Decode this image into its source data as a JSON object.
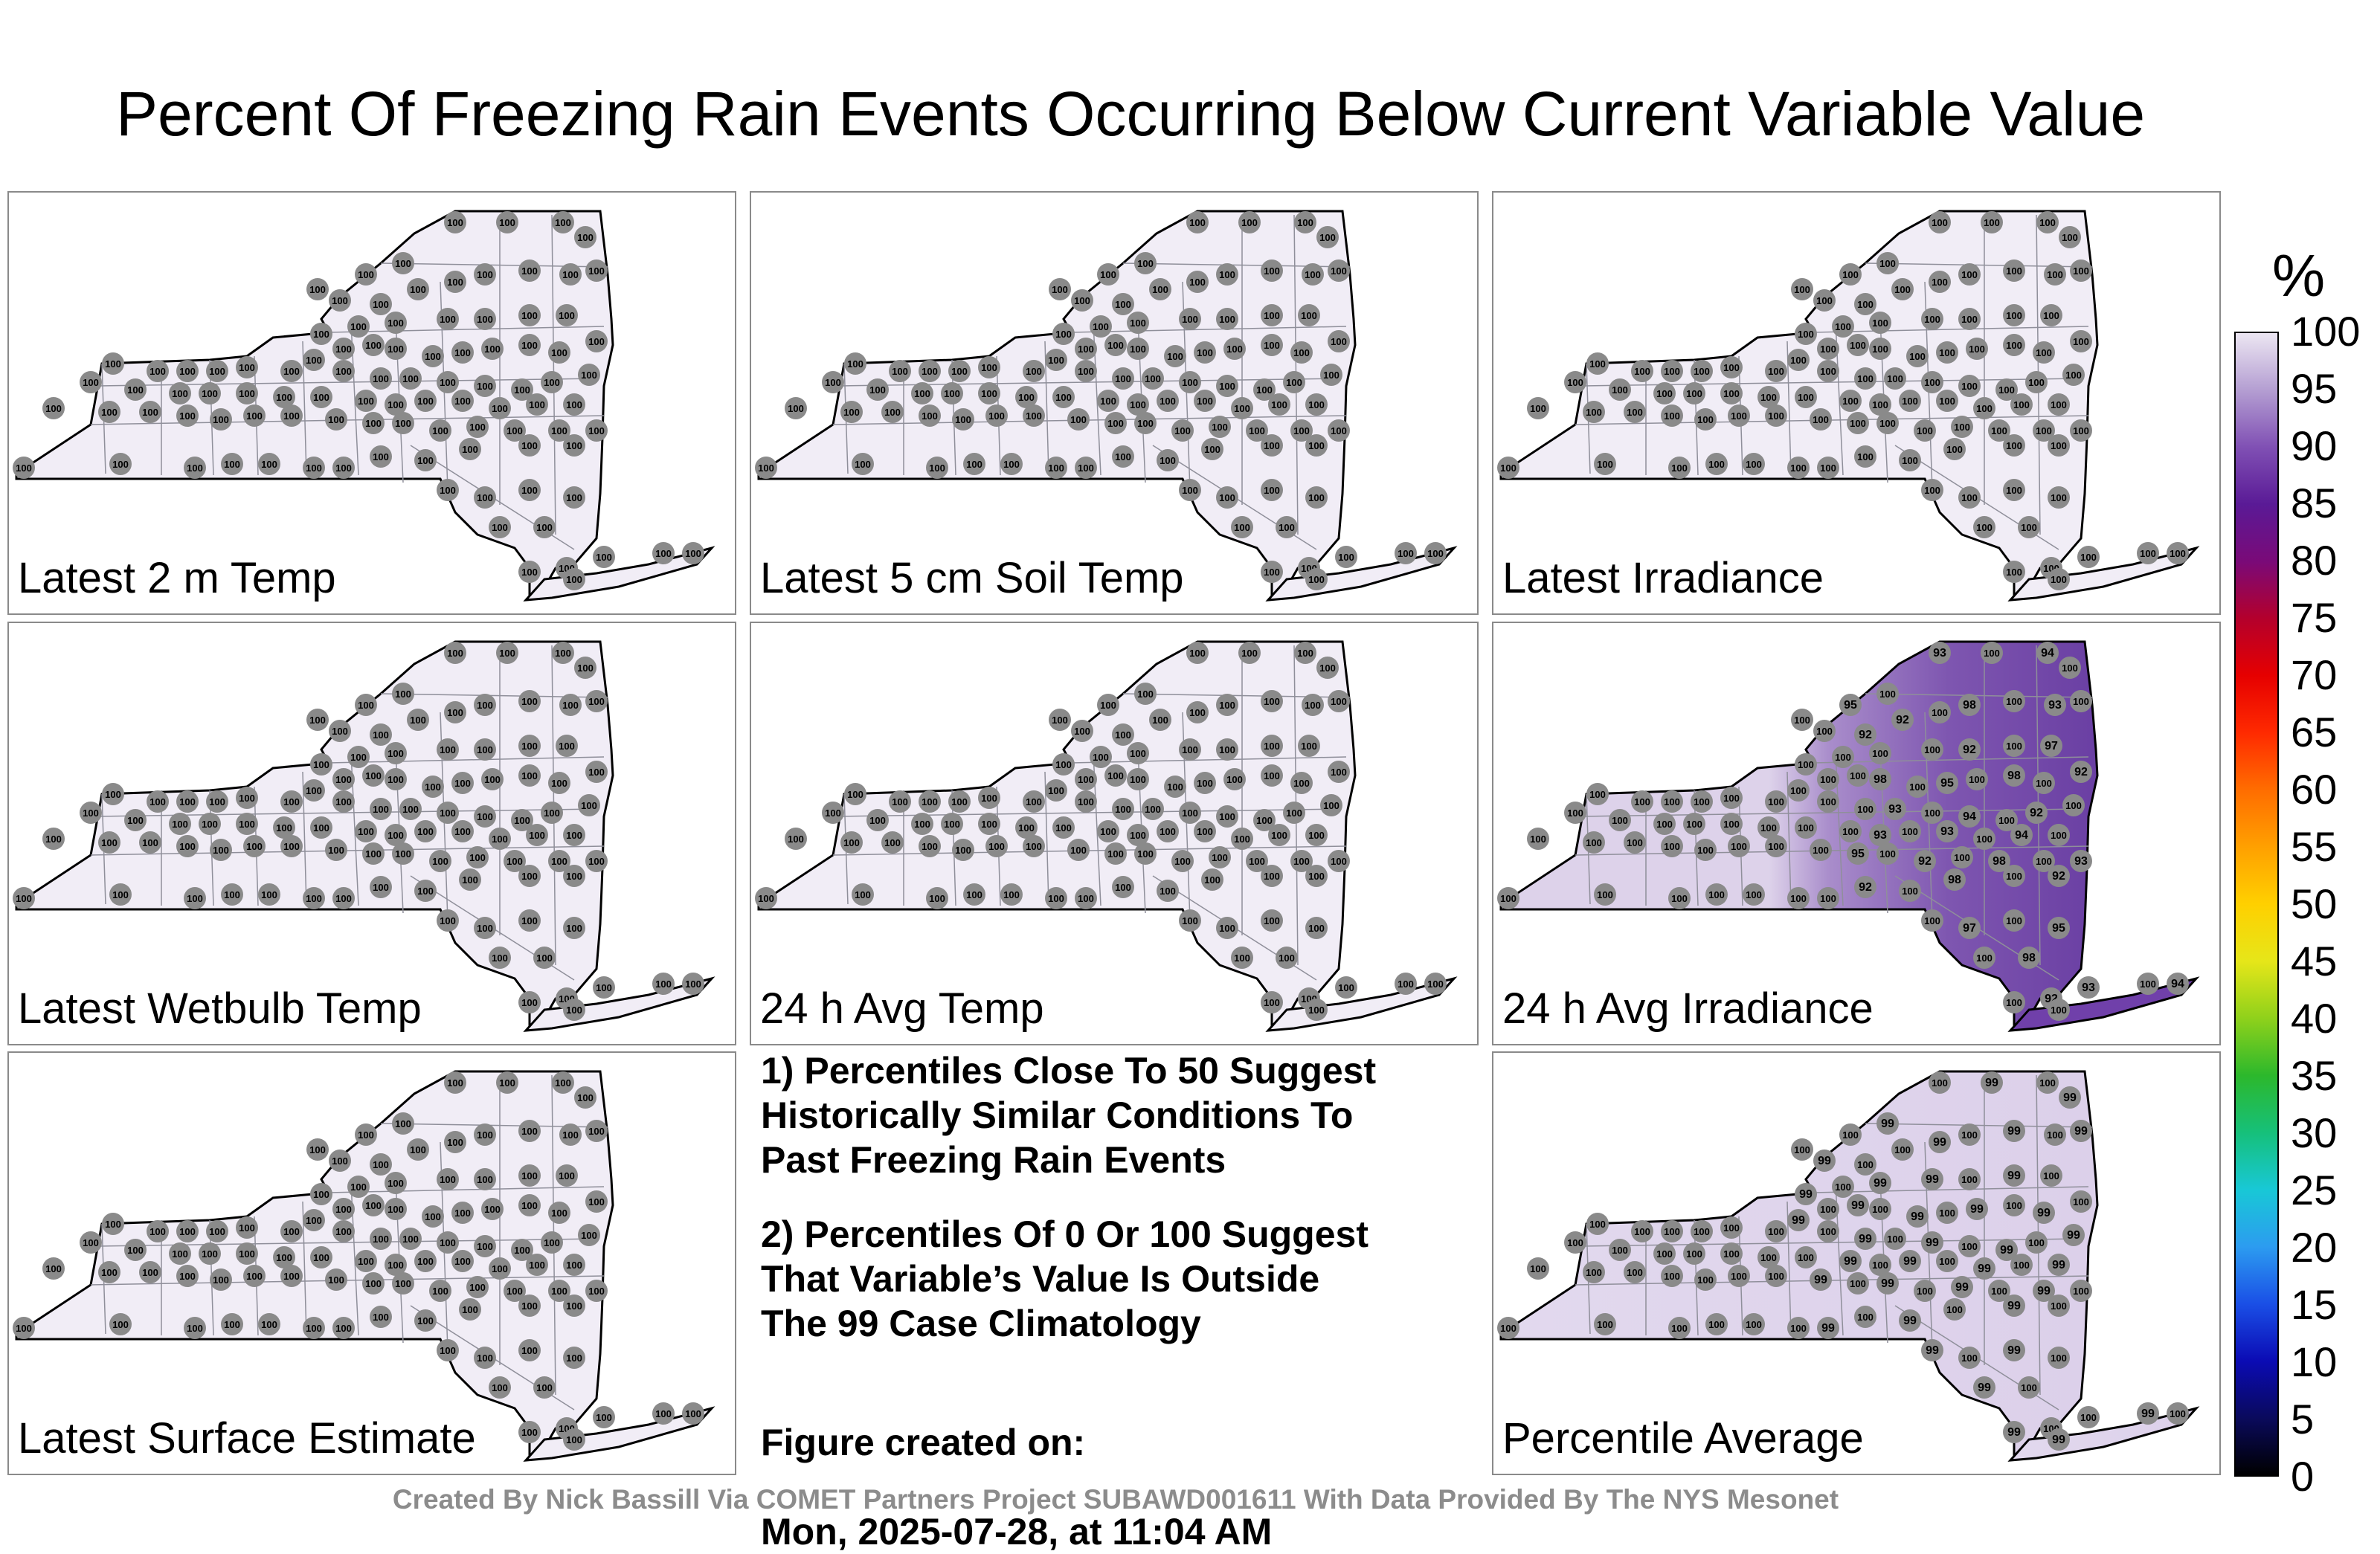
{
  "title": "Percent Of Freezing Rain Events Occurring Below Current Variable Value",
  "panels": [
    {
      "label": "Latest 2 m Temp",
      "mode": "uniform",
      "value": "100"
    },
    {
      "label": "Latest 5 cm Soil Temp",
      "mode": "uniform",
      "value": "100"
    },
    {
      "label": "Latest Irradiance",
      "mode": "uniform",
      "value": "100"
    },
    {
      "label": "Latest Wetbulb Temp",
      "mode": "uniform",
      "value": "100"
    },
    {
      "label": "24 h Avg Temp",
      "mode": "uniform",
      "value": "100"
    },
    {
      "label": "24 h Avg Irradiance",
      "mode": "east-low",
      "value": "100",
      "east_values": [
        "93",
        "94",
        "95",
        "92",
        "98",
        "93",
        "92",
        "98",
        "92",
        "97",
        "95",
        "98",
        "92",
        "93",
        "94",
        "92",
        "93"
      ]
    },
    {
      "label": "Latest Surface Estimate",
      "mode": "uniform",
      "value": "100"
    },
    {
      "label": "Percentile Average",
      "mode": "mixed",
      "value": "100",
      "alt_value": "99"
    }
  ],
  "notes": {
    "note1": "1) Percentiles Close To 50 Suggest\nHistorically Similar Conditions To\nPast Freezing Rain Events",
    "note2": "2) Percentiles Of 0 Or 100 Suggest\nThat Variable’s Value Is Outside\nThe 99 Case Climatology",
    "created_label": "Figure created on:",
    "created_value": "Mon, 2025-07-28, at 11:04 AM"
  },
  "credit": "Created By Nick Bassill Via COMET Partners Project SUBAWD001611 With Data Provided By The NYS Mesonet",
  "colorbar": {
    "unit": "%",
    "ticks": [
      "100",
      "95",
      "90",
      "85",
      "80",
      "75",
      "70",
      "65",
      "60",
      "55",
      "50",
      "45",
      "40",
      "35",
      "30",
      "25",
      "20",
      "15",
      "10",
      "5",
      "0"
    ],
    "colors": [
      "#000000",
      "#0a0a5c",
      "#0b0bb4",
      "#1a4fe6",
      "#2c9cf0",
      "#18c8d6",
      "#16c07a",
      "#2cb82c",
      "#8fd11b",
      "#e6e619",
      "#ffd000",
      "#ffa000",
      "#ff6d00",
      "#ff2a00",
      "#e60000",
      "#b4002c",
      "#7a0a78",
      "#5a1a96",
      "#8050b4",
      "#b49ed2",
      "#ece6f2"
    ]
  }
}
